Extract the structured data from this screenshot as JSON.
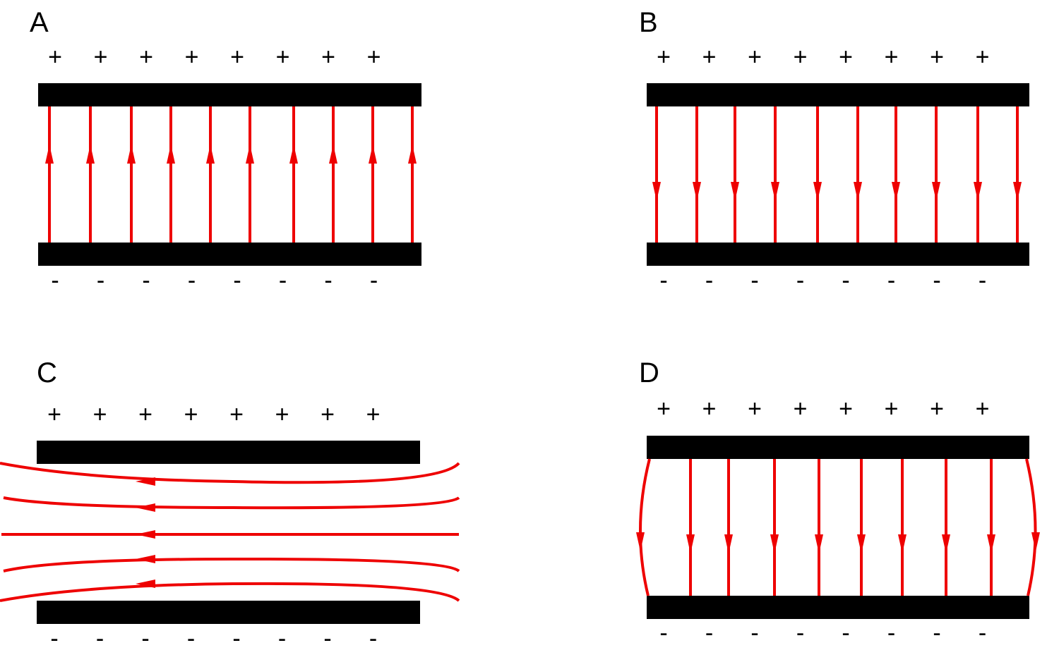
{
  "panels": [
    {
      "label": "A",
      "top_charges": [
        "+",
        "+",
        "+",
        "+",
        "+",
        "+",
        "+",
        "+"
      ],
      "bottom_charges": [
        "-",
        "-",
        "-",
        "-",
        "-",
        "-",
        "-",
        "-"
      ]
    },
    {
      "label": "B",
      "top_charges": [
        "+",
        "+",
        "+",
        "+",
        "+",
        "+",
        "+",
        "+"
      ],
      "bottom_charges": [
        "-",
        "-",
        "-",
        "-",
        "-",
        "-",
        "-",
        "-"
      ]
    },
    {
      "label": "C",
      "top_charges": [
        "+",
        "+",
        "+",
        "+",
        "+",
        "+",
        "+",
        "+"
      ],
      "bottom_charges": [
        "-",
        "-",
        "-",
        "-",
        "-",
        "-",
        "-",
        "-"
      ]
    },
    {
      "label": "D",
      "top_charges": [
        "+",
        "+",
        "+",
        "+",
        "+",
        "+",
        "+",
        "+"
      ],
      "bottom_charges": [
        "-",
        "-",
        "-",
        "-",
        "-",
        "-",
        "-",
        "-"
      ]
    }
  ]
}
